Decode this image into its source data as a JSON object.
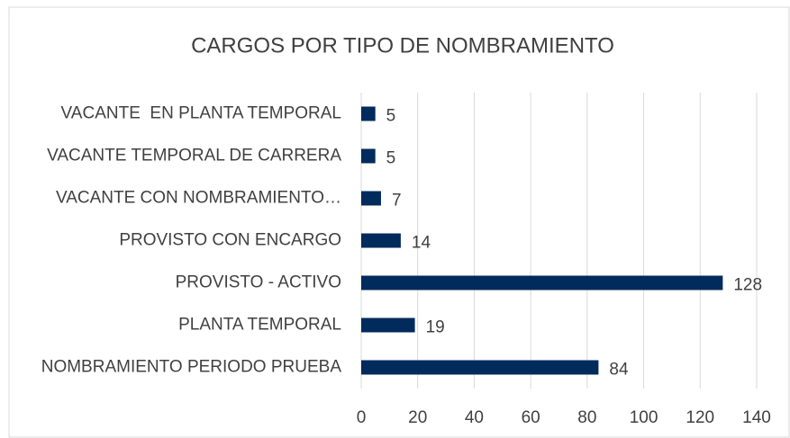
{
  "chart_data": {
    "type": "bar",
    "title": "CARGOS POR TIPO DE NOMBRAMIENTO",
    "categories": [
      "VACANTE  EN PLANTA TEMPORAL",
      "VACANTE TEMPORAL DE CARRERA",
      "VACANTE CON NOMBRAMIENTO…",
      "PROVISTO CON ENCARGO",
      "PROVISTO - ACTIVO",
      "PLANTA TEMPORAL",
      "NOMBRAMIENTO PERIODO PRUEBA"
    ],
    "values": [
      5,
      5,
      7,
      14,
      128,
      19,
      84
    ],
    "color": "#002b5c",
    "xlim": [
      0,
      140
    ],
    "xticks": [
      0,
      20,
      40,
      60,
      80,
      100,
      120,
      140
    ],
    "grid": true
  }
}
